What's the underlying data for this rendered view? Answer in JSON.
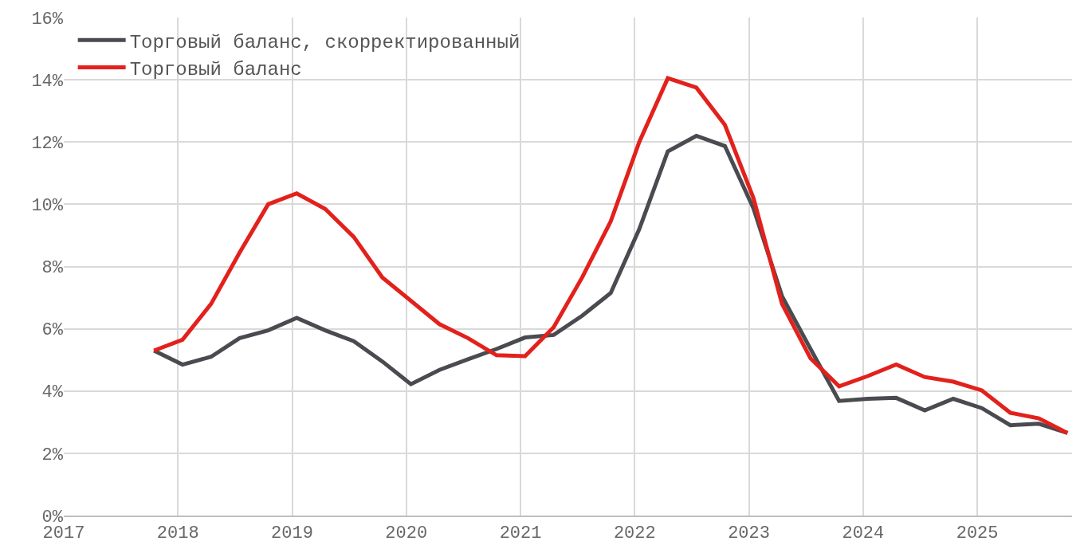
{
  "chart_data": {
    "type": "line",
    "x": [
      2017.79,
      2018.04,
      2018.29,
      2018.54,
      2018.79,
      2019.04,
      2019.29,
      2019.54,
      2019.79,
      2020.04,
      2020.29,
      2020.54,
      2020.79,
      2021.04,
      2021.29,
      2021.54,
      2021.79,
      2022.04,
      2022.29,
      2022.54,
      2022.79,
      2023.04,
      2023.29,
      2023.54,
      2023.79,
      2024.04,
      2024.29,
      2024.54,
      2024.79,
      2025.04,
      2025.29,
      2025.54,
      2025.79
    ],
    "series": [
      {
        "name": "Торговый баланс, скорректированный",
        "color": "#4a4b50",
        "values": [
          5.3,
          4.85,
          5.1,
          5.7,
          5.95,
          6.35,
          5.95,
          5.6,
          4.95,
          4.22,
          4.68,
          5.02,
          5.35,
          5.72,
          5.8,
          6.42,
          7.15,
          9.2,
          11.7,
          12.2,
          11.87,
          9.87,
          7.05,
          5.35,
          3.68,
          3.75,
          3.78,
          3.38,
          3.75,
          3.45,
          2.9,
          2.95,
          2.65
        ]
      },
      {
        "name": "Торговый баланс",
        "color": "#e3211c",
        "values": [
          5.3,
          5.65,
          6.8,
          8.45,
          10.0,
          10.35,
          9.85,
          8.95,
          7.65,
          6.9,
          6.15,
          5.7,
          5.15,
          5.12,
          6.05,
          7.65,
          9.45,
          12.0,
          14.05,
          13.75,
          12.55,
          10.2,
          6.8,
          5.05,
          4.15,
          4.48,
          4.85,
          4.45,
          4.3,
          4.02,
          3.3,
          3.12,
          2.65
        ]
      }
    ],
    "xlim": [
      2017,
      2025.83
    ],
    "xticks": [
      2017,
      2018,
      2019,
      2020,
      2021,
      2022,
      2023,
      2024,
      2025
    ],
    "ylim": [
      0,
      16
    ],
    "yticks": [
      {
        "value": 0,
        "label": "0%"
      },
      {
        "value": 2,
        "label": "2%"
      },
      {
        "value": 4,
        "label": "4%"
      },
      {
        "value": 6,
        "label": "6%"
      },
      {
        "value": 8,
        "label": "8%"
      },
      {
        "value": 10,
        "label": "10%"
      },
      {
        "value": 12,
        "label": "12%"
      },
      {
        "value": 14,
        "label": "14%"
      },
      {
        "value": 16,
        "label": "16%"
      }
    ],
    "grid": true,
    "legend": "top left",
    "marker": "none",
    "line_style": "solid"
  }
}
